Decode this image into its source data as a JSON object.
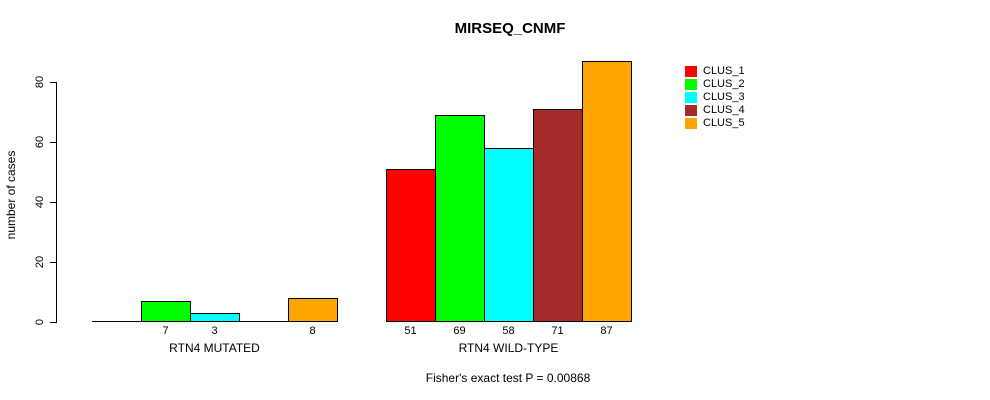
{
  "chart_data": {
    "type": "bar",
    "title": "MIRSEQ_CNMF",
    "ylabel": "number of cases",
    "xlabel": "",
    "footnote": "Fisher's exact test P = 0.00868",
    "yticks": [
      0,
      20,
      40,
      60,
      80
    ],
    "ylim": [
      0,
      87
    ],
    "grid": false,
    "legend_position": "right",
    "series": [
      {
        "name": "CLUS_1",
        "color": "#FF0000"
      },
      {
        "name": "CLUS_2",
        "color": "#00FF00"
      },
      {
        "name": "CLUS_3",
        "color": "#00FFFF"
      },
      {
        "name": "CLUS_4",
        "color": "#A52A2A"
      },
      {
        "name": "CLUS_5",
        "color": "#FFA500"
      }
    ],
    "categories": [
      "RTN4 MUTATED",
      "RTN4 WILD-TYPE"
    ],
    "groups": [
      {
        "label": "RTN4 MUTATED",
        "values": [
          0,
          7,
          3,
          0,
          8
        ],
        "bar_labels": [
          "",
          "7",
          "3",
          "",
          "8"
        ]
      },
      {
        "label": "RTN4 WILD-TYPE",
        "values": [
          51,
          69,
          58,
          71,
          87
        ],
        "bar_labels": [
          "51",
          "69",
          "58",
          "71",
          "87"
        ]
      }
    ]
  }
}
